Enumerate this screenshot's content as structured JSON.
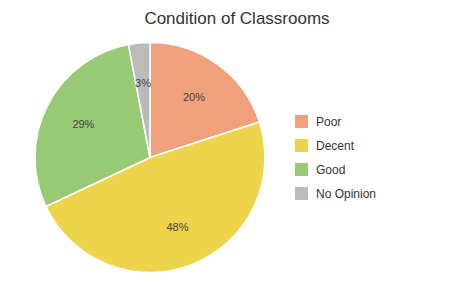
{
  "chart_data": {
    "type": "pie",
    "title": "Condition of Classrooms",
    "categories": [
      "Poor",
      "Decent",
      "Good",
      "No Opinion"
    ],
    "values": [
      20,
      48,
      29,
      3
    ],
    "value_labels": [
      "20%",
      "48%",
      "29%",
      "3%"
    ],
    "colors": [
      "#F0A07A",
      "#EDD44A",
      "#98C974",
      "#BBBBBB"
    ],
    "data_labels": true,
    "legend": "right"
  }
}
